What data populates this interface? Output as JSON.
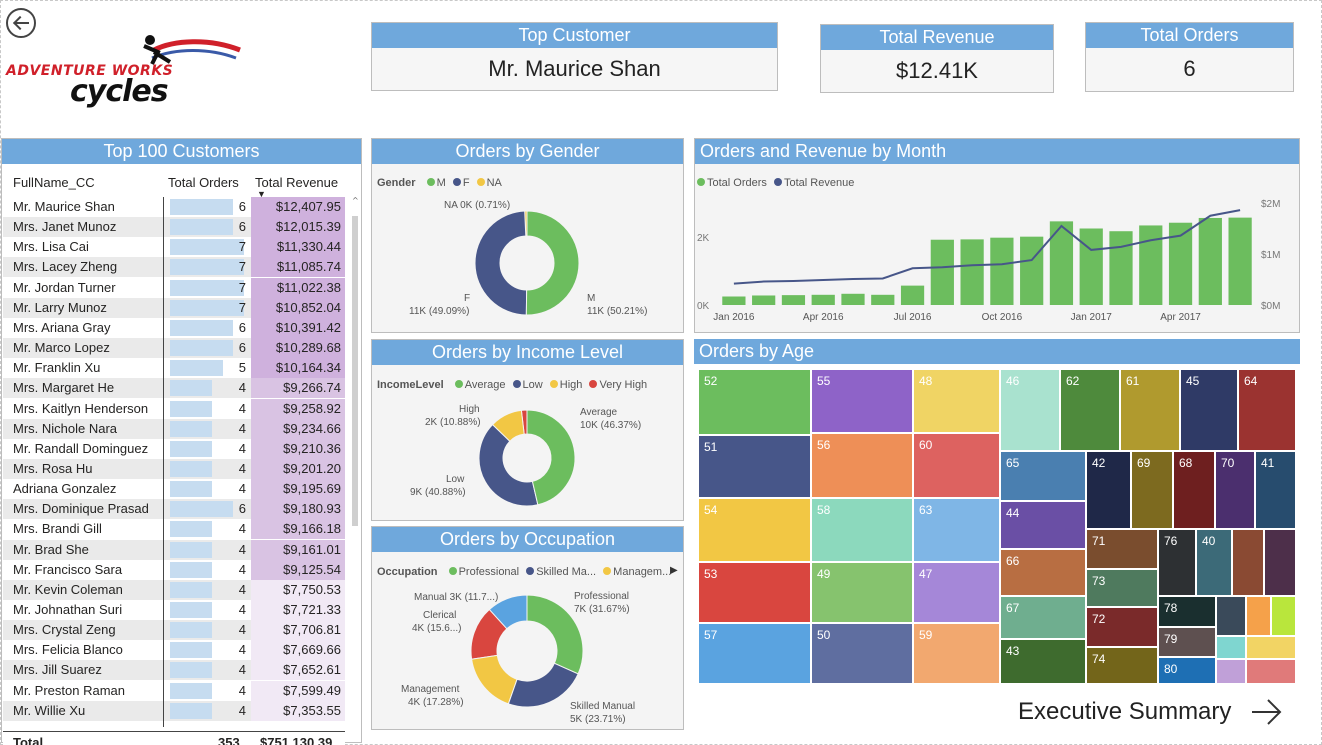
{
  "brand": {
    "line1": "ADVENTURE WORKS",
    "line2": "cycles"
  },
  "kpis": {
    "top_customer": {
      "label": "Top Customer",
      "value": "Mr. Maurice Shan"
    },
    "total_revenue": {
      "label": "Total Revenue",
      "value": "$12.41K"
    },
    "total_orders": {
      "label": "Total Orders",
      "value": "6"
    }
  },
  "customers_table": {
    "title": "Top 100 Customers",
    "columns": [
      "FullName_CC",
      "Total Orders",
      "Total Revenue"
    ],
    "rows": [
      {
        "name": "Mr. Maurice Shan",
        "orders": 6,
        "revenue": "$12,407.95"
      },
      {
        "name": "Mrs. Janet Munoz",
        "orders": 6,
        "revenue": "$12,015.39"
      },
      {
        "name": "Mrs. Lisa Cai",
        "orders": 7,
        "revenue": "$11,330.44"
      },
      {
        "name": "Mrs. Lacey Zheng",
        "orders": 7,
        "revenue": "$11,085.74"
      },
      {
        "name": "Mr. Jordan Turner",
        "orders": 7,
        "revenue": "$11,022.38"
      },
      {
        "name": "Mr. Larry Munoz",
        "orders": 7,
        "revenue": "$10,852.04"
      },
      {
        "name": "Mrs. Ariana Gray",
        "orders": 6,
        "revenue": "$10,391.42"
      },
      {
        "name": "Mr. Marco Lopez",
        "orders": 6,
        "revenue": "$10,289.68"
      },
      {
        "name": "Mr. Franklin Xu",
        "orders": 5,
        "revenue": "$10,164.34"
      },
      {
        "name": "Mrs. Margaret He",
        "orders": 4,
        "revenue": "$9,266.74"
      },
      {
        "name": "Mrs. Kaitlyn Henderson",
        "orders": 4,
        "revenue": "$9,258.92"
      },
      {
        "name": "Mrs. Nichole Nara",
        "orders": 4,
        "revenue": "$9,234.66"
      },
      {
        "name": "Mr. Randall Dominguez",
        "orders": 4,
        "revenue": "$9,210.36"
      },
      {
        "name": "Mrs. Rosa Hu",
        "orders": 4,
        "revenue": "$9,201.20"
      },
      {
        "name": "Adriana Gonzalez",
        "orders": 4,
        "revenue": "$9,195.69"
      },
      {
        "name": "Mrs. Dominique Prasad",
        "orders": 6,
        "revenue": "$9,180.93"
      },
      {
        "name": "Mrs. Brandi Gill",
        "orders": 4,
        "revenue": "$9,166.18"
      },
      {
        "name": "Mr. Brad She",
        "orders": 4,
        "revenue": "$9,161.01"
      },
      {
        "name": "Mr. Francisco Sara",
        "orders": 4,
        "revenue": "$9,125.54"
      },
      {
        "name": "Mr. Kevin Coleman",
        "orders": 4,
        "revenue": "$7,750.53"
      },
      {
        "name": "Mr. Johnathan Suri",
        "orders": 4,
        "revenue": "$7,721.33"
      },
      {
        "name": "Mrs. Crystal Zeng",
        "orders": 4,
        "revenue": "$7,706.81"
      },
      {
        "name": "Mrs. Felicia Blanco",
        "orders": 4,
        "revenue": "$7,669.66"
      },
      {
        "name": "Mrs. Jill Suarez",
        "orders": 4,
        "revenue": "$7,652.61"
      },
      {
        "name": "Mr. Preston Raman",
        "orders": 4,
        "revenue": "$7,599.49"
      },
      {
        "name": "Mr. Willie Xu",
        "orders": 4,
        "revenue": "$7,353.55"
      }
    ],
    "total": {
      "label": "Total",
      "orders": "353",
      "revenue": "$751,130.39"
    }
  },
  "gender_chart": {
    "title": "Orders by Gender",
    "legend_title": "Gender",
    "legend": [
      {
        "label": "M",
        "color": "#6cbd5e"
      },
      {
        "label": "F",
        "color": "#475689"
      },
      {
        "label": "NA",
        "color": "#f2c744"
      }
    ],
    "labels": {
      "na": "NA 0K (0.71%)",
      "f_line1": "F",
      "f_line2": "11K (49.09%)",
      "m_line1": "M",
      "m_line2": "11K (50.21%)"
    }
  },
  "income_chart": {
    "title": "Orders by Income Level",
    "legend_title": "IncomeLevel",
    "legend": [
      {
        "label": "Average",
        "color": "#6cbd5e"
      },
      {
        "label": "Low",
        "color": "#475689"
      },
      {
        "label": "High",
        "color": "#f2c744"
      },
      {
        "label": "Very High",
        "color": "#d9463f"
      }
    ],
    "labels": {
      "high_1": "High",
      "high_2": "2K (10.88%)",
      "avg_1": "Average",
      "avg_2": "10K (46.37%)",
      "low_1": "Low",
      "low_2": "9K (40.88%)"
    }
  },
  "occupation_chart": {
    "title": "Orders by Occupation",
    "legend_title": "Occupation",
    "legend": [
      {
        "label": "Professional",
        "color": "#6cbd5e"
      },
      {
        "label": "Skilled Ma...",
        "color": "#475689"
      },
      {
        "label": "Managem...",
        "color": "#f2c744"
      }
    ],
    "labels": {
      "manual": "Manual 3K (11.7...)",
      "clerical_1": "Clerical",
      "clerical_2": "4K (15.6...)",
      "prof_1": "Professional",
      "prof_2": "7K (31.67%)",
      "mgmt_1": "Management",
      "mgmt_2": "4K (17.28%)",
      "skilled_1": "Skilled Manual",
      "skilled_2": "5K (23.71%)"
    }
  },
  "chart_data": [
    {
      "type": "pie",
      "title": "Orders by Gender",
      "categories": [
        "M",
        "F",
        "NA"
      ],
      "values": [
        50.21,
        49.09,
        0.71
      ],
      "colors": [
        "#6cbd5e",
        "#475689",
        "#f2c744"
      ]
    },
    {
      "type": "pie",
      "title": "Orders by Income Level",
      "categories": [
        "Average",
        "Low",
        "High",
        "Very High"
      ],
      "values": [
        46.37,
        40.88,
        10.88,
        1.87
      ],
      "colors": [
        "#6cbd5e",
        "#475689",
        "#f2c744",
        "#d9463f"
      ]
    },
    {
      "type": "pie",
      "title": "Orders by Occupation",
      "categories": [
        "Professional",
        "Skilled Manual",
        "Management",
        "Clerical",
        "Manual"
      ],
      "values": [
        31.67,
        23.71,
        17.28,
        15.6,
        11.74
      ],
      "colors": [
        "#6cbd5e",
        "#475689",
        "#f2c744",
        "#d9463f",
        "#5aa3e0"
      ]
    },
    {
      "type": "bar",
      "title": "Orders and Revenue by Month",
      "x": [
        "Jan 2016",
        "Feb 2016",
        "Mar 2016",
        "Apr 2016",
        "May 2016",
        "Jun 2016",
        "Jul 2016",
        "Aug 2016",
        "Sep 2016",
        "Oct 2016",
        "Nov 2016",
        "Dec 2016",
        "Jan 2017",
        "Feb 2017",
        "Mar 2017",
        "Apr 2017",
        "May 2017",
        "Jun 2017"
      ],
      "xticks": [
        "Jan 2016",
        "Apr 2016",
        "Jul 2016",
        "Oct 2016",
        "Jan 2017",
        "Apr 2017"
      ],
      "series": [
        {
          "name": "Total Orders",
          "kind": "bar",
          "axis": "left",
          "color": "#6cbd5e",
          "values": [
            250,
            280,
            290,
            300,
            330,
            300,
            570,
            1920,
            1930,
            1980,
            2010,
            2460,
            2250,
            2170,
            2340,
            2420,
            2560,
            2570
          ]
        },
        {
          "name": "Total Revenue",
          "kind": "line",
          "axis": "right",
          "color": "#475689",
          "values": [
            0.42,
            0.46,
            0.47,
            0.49,
            0.51,
            0.52,
            0.72,
            0.74,
            0.78,
            0.8,
            0.88,
            1.55,
            1.08,
            1.14,
            1.27,
            1.36,
            1.75,
            1.86
          ]
        }
      ],
      "ylim_left": [
        0,
        3000
      ],
      "yticks_left": [
        "0K",
        "2K"
      ],
      "ylim_right": [
        0,
        2.0
      ],
      "yticks_right": [
        "$0M",
        "$1M",
        "$2M"
      ],
      "legend": "top-left"
    },
    {
      "type": "treemap",
      "title": "Orders by Age",
      "labels": [
        "52",
        "51",
        "54",
        "53",
        "57",
        "55",
        "56",
        "58",
        "49",
        "50",
        "48",
        "60",
        "63",
        "47",
        "59",
        "46",
        "62",
        "61",
        "45",
        "64",
        "65",
        "44",
        "66",
        "67",
        "43",
        "42",
        "69",
        "68",
        "70",
        "41",
        "71",
        "73",
        "72",
        "74",
        "76",
        "40",
        "78",
        "79",
        "80"
      ]
    }
  ],
  "month_chart": {
    "title": "Orders and Revenue by Month",
    "legend": [
      {
        "label": "Total Orders",
        "color": "#6cbd5e"
      },
      {
        "label": "Total Revenue",
        "color": "#475689"
      }
    ]
  },
  "age_chart": {
    "title": "Orders by Age"
  },
  "nav": {
    "label": "Executive Summary"
  }
}
